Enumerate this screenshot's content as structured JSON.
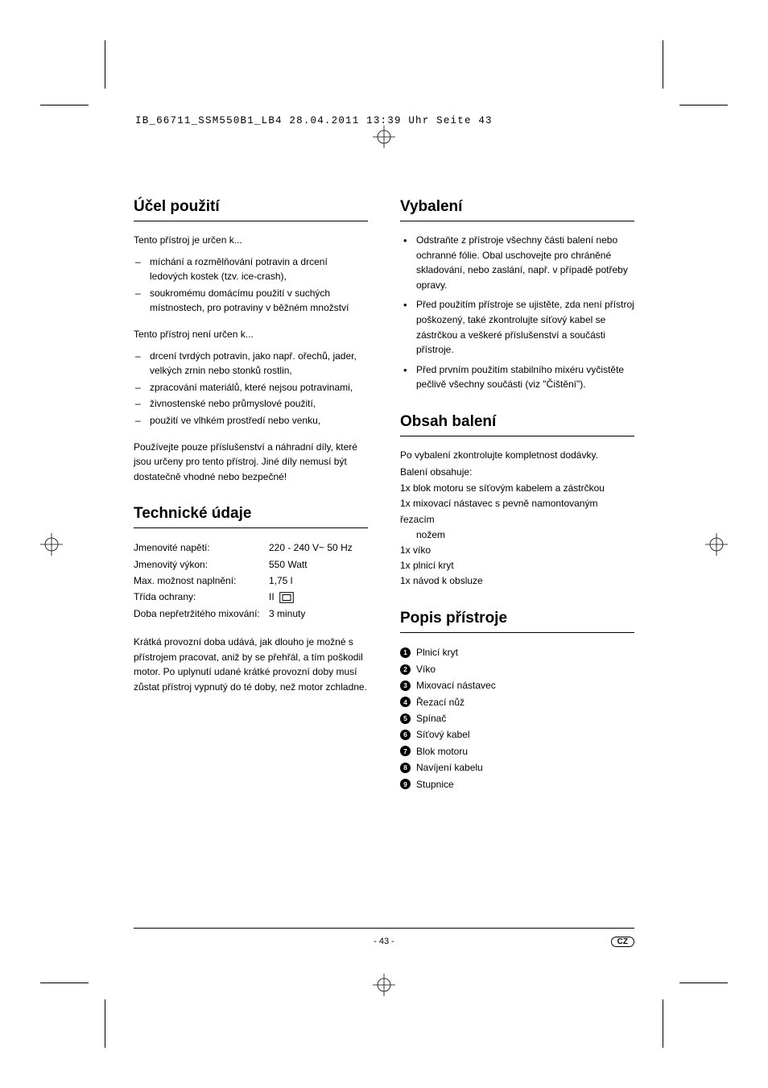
{
  "header_info": "IB_66711_SSM550B1_LB4  28.04.2011  13:39 Uhr  Seite 43",
  "left": {
    "s1": {
      "title": "Účel použití",
      "intro1": "Tento přístroj je určen k...",
      "list1": [
        "míchání a rozmělňování potravin a drcení ledových kostek (tzv. ice-crash),",
        "soukromému domácímu použití v suchých místnostech, pro potraviny v běžném množství"
      ],
      "intro2": "Tento přístroj není určen k...",
      "list2": [
        "drcení tvrdých potravin, jako např. ořechů, jader, velkých zrnin nebo stonků rostlin,",
        "zpracování materiálů, které nejsou potravinami,",
        "živnostenské nebo průmyslové použití,",
        "použití ve vlhkém prostředí nebo venku,"
      ],
      "note": "Používejte pouze příslušenství a náhradní díly, které jsou určeny pro tento přístroj. Jiné díly nemusí být dostatečně vhodné nebo bezpečné!"
    },
    "s2": {
      "title": "Technické údaje",
      "specs": [
        {
          "label": "Jmenovité napětí:",
          "value": "220 - 240 V~ 50 Hz"
        },
        {
          "label": "Jmenovitý výkon:",
          "value": "550 Watt"
        },
        {
          "label": "Max. možnost naplnění:",
          "value": "1,75 l"
        },
        {
          "label": "Třída ochrany:",
          "value": "II",
          "icon": true
        },
        {
          "label": "Doba nepřetržitého mixování:",
          "value": "3 minuty"
        }
      ],
      "note": "Krátká provozní doba udává, jak dlouho je možné s přístrojem pracovat, aniž by se přehřál, a tím poškodil motor. Po uplynutí udané krátké provozní doby musí zůstat přístroj vypnutý do té doby, než motor zchladne."
    }
  },
  "right": {
    "s1": {
      "title": "Vybalení",
      "list": [
        "Odstraňte z přístroje všechny části balení nebo ochranné fólie. Obal uschovejte pro chráněné skladování, nebo zaslání, např. v případě potřeby opravy.",
        "Před použitím přístroje se ujistěte, zda není přístroj poškozený, také zkontrolujte síťový kabel se zástrčkou a veškeré příslušenství a součásti přístroje.",
        "Před prvním použitím stabilního mixéru vyčistěte pečlivě všechny součásti (viz \"Čištění\")."
      ]
    },
    "s2": {
      "title": "Obsah balení",
      "intro1": "Po vybalení zkontrolujte kompletnost dodávky.",
      "intro2": "Balení obsahuje:",
      "items": [
        "1x blok motoru se síťovým kabelem a zástrčkou",
        "1x mixovací nástavec s pevně namontovaným řezacím",
        "1x víko",
        "1x plnicí kryt",
        "1x návod k obsluze"
      ],
      "item2_cont": "nožem"
    },
    "s3": {
      "title": "Popis přístroje",
      "items": [
        "Plnicí kryt",
        "Víko",
        "Mixovací nástavec",
        "Řezací nůž",
        "Spínač",
        "Síťový kabel",
        "Blok motoru",
        "Navíjení kabelu",
        "Stupnice"
      ]
    }
  },
  "footer": {
    "page": "- 43 -",
    "lang": "CZ"
  }
}
